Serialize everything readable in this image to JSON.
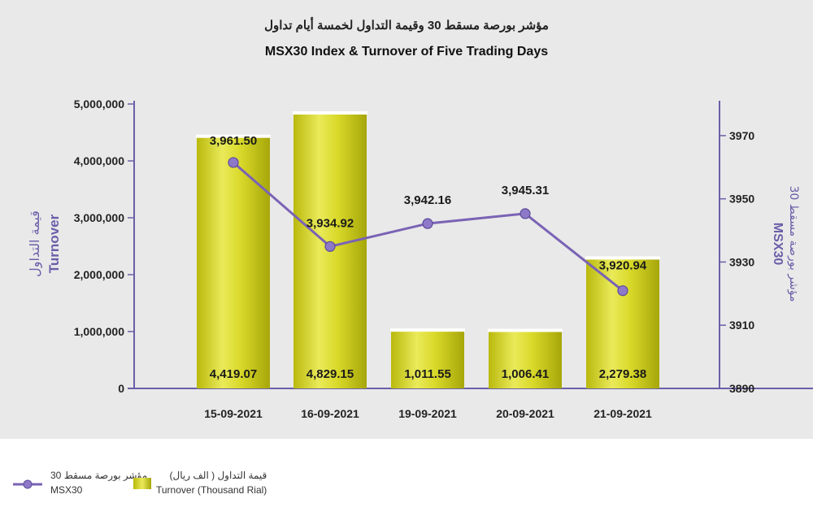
{
  "chart_data": {
    "type": "bar+line",
    "title_ar": "مؤشر بورصة مسقط 30 وقيمة التداول لخمسة أيام تداول",
    "title": "MSX30 Index & Turnover of Five Trading Days",
    "categories": [
      "15-09-2021",
      "16-09-2021",
      "19-09-2021",
      "20-09-2021",
      "21-09-2021"
    ],
    "bars": {
      "name_ar": "قيمة التداول ( الف ريال)",
      "name": "Turnover (Thousand Rial)",
      "values": [
        4419070,
        4829150,
        1011550,
        1006410,
        2279380
      ],
      "labels": [
        "4,419.07",
        "4,829.15",
        "1,011.55",
        "1,006.41",
        "2,279.38"
      ],
      "color": "#d4d420"
    },
    "line": {
      "name_ar": "مؤشر بورصة مسقط 30",
      "name": "MSX30",
      "values": [
        3961.5,
        3934.92,
        3942.16,
        3945.31,
        3920.94
      ],
      "labels": [
        "3,961.50",
        "3,934.92",
        "3,942.16",
        "3,945.31",
        "3,920.94"
      ],
      "color": "#7a63b5"
    },
    "y_left": {
      "label_ar": "قيمة التداول",
      "label": "Turnover",
      "range": [
        0,
        5000000
      ],
      "ticks": [
        0,
        1000000,
        2000000,
        3000000,
        4000000,
        5000000
      ],
      "tick_labels": [
        "0",
        "1,000,000",
        "2,000,000",
        "3,000,000",
        "4,000,000",
        "5,000,000"
      ]
    },
    "y_right": {
      "label_ar": "مؤشر بورصة مسقط 30",
      "label": "MSX30",
      "range": [
        3890,
        3980
      ],
      "ticks": [
        3890,
        3910,
        3930,
        3950,
        3970
      ],
      "tick_labels": [
        "3890",
        "3910",
        "3930",
        "3950",
        "3970"
      ]
    },
    "grid": false,
    "legend_position": "bottom-left"
  }
}
